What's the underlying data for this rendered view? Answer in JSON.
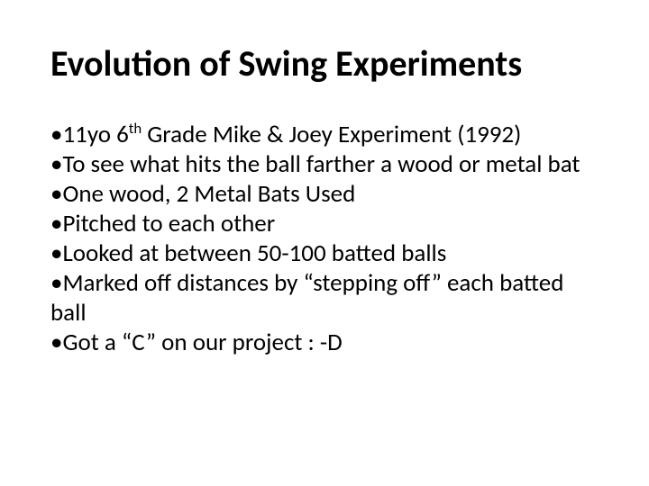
{
  "slide": {
    "title": "Evolution of Swing Experiments",
    "title_fontsize": 40,
    "title_weight": 700,
    "body_fontsize": 27,
    "text_color": "#000000",
    "background_color": "#ffffff",
    "bullet_char": "•",
    "bullets": [
      {
        "pre": "11yo 6",
        "sup": "th",
        "post": " Grade Mike & Joey Experiment (1992)"
      },
      {
        "pre": "To see what hits the ball farther a wood or metal bat",
        "sup": "",
        "post": ""
      },
      {
        "pre": "One wood, 2 Metal Bats Used",
        "sup": "",
        "post": ""
      },
      {
        "pre": "Pitched to each other",
        "sup": "",
        "post": ""
      },
      {
        "pre": "Looked at between 50-100 batted balls",
        "sup": "",
        "post": ""
      },
      {
        "pre": "Marked off distances by “stepping off” each batted ball",
        "sup": "",
        "post": ""
      },
      {
        "pre": "Got a “C” on our project : -D",
        "sup": "",
        "post": ""
      }
    ]
  }
}
